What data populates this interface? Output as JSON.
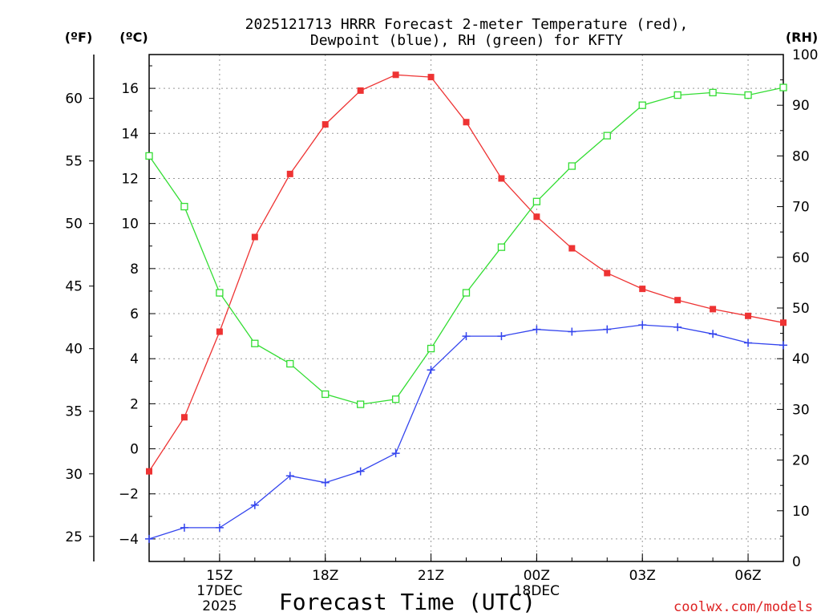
{
  "chart_data": {
    "type": "line",
    "title_line1": "2025121713 HRRR Forecast 2-meter Temperature (red),",
    "title_line2": "Dewpoint (blue), RH (green) for KFTY",
    "xlabel": "Forecast Time (UTC)",
    "watermark": "coolwx.com/models",
    "left_unit_f": "(ºF)",
    "left_unit_c": "(ºC)",
    "right_unit": "(RH)",
    "c_range": [
      -5,
      17.5
    ],
    "c_ticks": [
      -4,
      -2,
      0,
      2,
      4,
      6,
      8,
      10,
      12,
      14,
      16
    ],
    "c_tick_labels": [
      "−4",
      "−2",
      "0",
      "2",
      "4",
      "6",
      "8",
      "10",
      "12",
      "14",
      "16"
    ],
    "f_ticks": [
      25,
      30,
      35,
      40,
      45,
      50,
      55,
      60
    ],
    "rh_range": [
      0,
      100
    ],
    "rh_ticks": [
      0,
      10,
      20,
      30,
      40,
      50,
      60,
      70,
      80,
      90,
      100
    ],
    "x_range": [
      13,
      31
    ],
    "x_ticks": [
      {
        "hour": 15,
        "label": "15Z",
        "sub1": "17DEC",
        "sub2": "2025"
      },
      {
        "hour": 18,
        "label": "18Z",
        "sub1": "",
        "sub2": ""
      },
      {
        "hour": 21,
        "label": "21Z",
        "sub1": "",
        "sub2": ""
      },
      {
        "hour": 24,
        "label": "00Z",
        "sub1": "18DEC",
        "sub2": ""
      },
      {
        "hour": 27,
        "label": "03Z",
        "sub1": "",
        "sub2": ""
      },
      {
        "hour": 30,
        "label": "06Z",
        "sub1": "",
        "sub2": ""
      }
    ],
    "hours": [
      13,
      14,
      15,
      16,
      17,
      18,
      19,
      20,
      21,
      22,
      23,
      24,
      25,
      26,
      27,
      28,
      29,
      30,
      31
    ],
    "series": [
      {
        "name": "Temperature",
        "color": "#ee3333",
        "marker": "filled-square",
        "axis": "C",
        "values": [
          -1.0,
          1.4,
          5.2,
          9.4,
          12.2,
          14.4,
          15.9,
          16.6,
          16.5,
          14.5,
          12.0,
          10.3,
          8.9,
          7.8,
          7.1,
          6.6,
          6.2,
          5.9,
          5.6
        ]
      },
      {
        "name": "Dewpoint",
        "color": "#3344ee",
        "marker": "plus",
        "axis": "C",
        "values": [
          -4.0,
          -3.5,
          -3.5,
          -2.5,
          -1.2,
          -1.5,
          -1.0,
          -0.2,
          3.5,
          5.0,
          5.0,
          5.3,
          5.2,
          5.3,
          5.5,
          5.4,
          5.1,
          4.7,
          4.6
        ]
      },
      {
        "name": "RH",
        "color": "#33dd33",
        "marker": "open-square",
        "axis": "RH",
        "values": [
          80,
          70,
          53,
          43,
          39,
          33,
          31,
          32,
          42,
          53,
          62,
          71,
          78,
          84,
          90,
          92,
          92.5,
          92,
          93.5
        ]
      }
    ]
  }
}
